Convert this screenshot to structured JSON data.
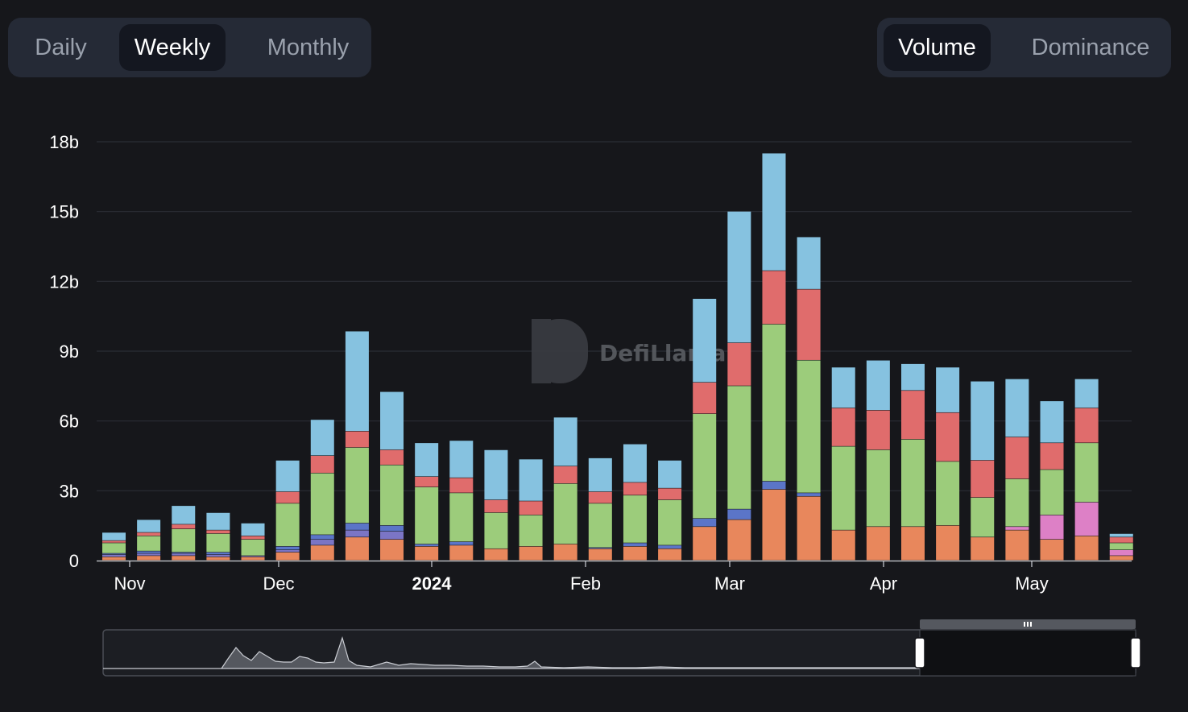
{
  "interval_toggle": {
    "options": [
      "Daily",
      "Weekly",
      "Monthly"
    ],
    "selected": "Weekly"
  },
  "metric_toggle": {
    "options": [
      "Volume",
      "Dominance"
    ],
    "selected": "Volume"
  },
  "watermark": {
    "text": "DefiLlama"
  },
  "colors": {
    "background": "#16171b",
    "toggle_bg": "#252a36",
    "toggle_active": "#141720",
    "gridline": "#2b2e35",
    "series": [
      "#e8875c",
      "#dd80c6",
      "#7b75c5",
      "#5b75c8",
      "#9ccc7b",
      "#e06c6c",
      "#86c2e0"
    ]
  },
  "chart_data": {
    "type": "bar",
    "stacked": true,
    "ylim": [
      0,
      18
    ],
    "yticks": [
      "0",
      "3b",
      "6b",
      "9b",
      "12b",
      "15b",
      "18b"
    ],
    "xticks": [
      "Nov",
      "Dec",
      "2024",
      "Feb",
      "Mar",
      "Apr",
      "May"
    ],
    "grid": true,
    "legend": "none",
    "series": [
      {
        "values": [
          0.15,
          0.2,
          0.2,
          0.15,
          0.15,
          0.35,
          0.65,
          1.0,
          0.9,
          0.6,
          0.65,
          0.5,
          0.6,
          0.7,
          0.5,
          0.6,
          0.5,
          1.45,
          1.75,
          3.05,
          2.75,
          1.3,
          1.45,
          1.45,
          1.5,
          1.0,
          1.3,
          0.9,
          1.05,
          0.2
        ]
      },
      {
        "values": [
          0,
          0,
          0,
          0,
          0,
          0,
          0,
          0,
          0,
          0,
          0,
          0,
          0,
          0,
          0,
          0,
          0,
          0,
          0,
          0,
          0,
          0,
          0,
          0,
          0,
          0,
          0.15,
          1.05,
          1.45,
          0.25
        ]
      },
      {
        "values": [
          0.1,
          0.1,
          0.1,
          0.1,
          0.05,
          0.1,
          0.25,
          0.3,
          0.35,
          0,
          0,
          0,
          0,
          0,
          0,
          0,
          0,
          0,
          0,
          0,
          0,
          0,
          0,
          0,
          0,
          0,
          0,
          0,
          0,
          0
        ]
      },
      {
        "values": [
          0.05,
          0.1,
          0.05,
          0.1,
          0,
          0.15,
          0.2,
          0.3,
          0.25,
          0.1,
          0.15,
          0,
          0,
          0,
          0.05,
          0.15,
          0.15,
          0.35,
          0.45,
          0.35,
          0.15,
          0,
          0,
          0,
          0,
          0,
          0,
          0,
          0,
          0
        ]
      },
      {
        "values": [
          0.45,
          0.65,
          1.0,
          0.8,
          0.7,
          1.85,
          2.65,
          3.25,
          2.6,
          2.45,
          2.1,
          1.55,
          1.35,
          2.6,
          1.9,
          2.05,
          1.95,
          4.5,
          5.3,
          6.75,
          5.7,
          3.6,
          3.3,
          3.75,
          2.75,
          1.7,
          2.05,
          1.95,
          2.55,
          0.3
        ]
      },
      {
        "values": [
          0.1,
          0.15,
          0.2,
          0.15,
          0.15,
          0.5,
          0.75,
          0.7,
          0.65,
          0.45,
          0.65,
          0.55,
          0.6,
          0.75,
          0.5,
          0.55,
          0.5,
          1.35,
          1.85,
          2.3,
          3.05,
          1.65,
          1.7,
          2.1,
          2.1,
          1.6,
          1.8,
          1.15,
          1.5,
          0.25
        ]
      },
      {
        "values": [
          0.35,
          0.55,
          0.8,
          0.75,
          0.55,
          1.35,
          1.55,
          4.3,
          2.5,
          1.45,
          1.6,
          2.15,
          1.8,
          2.1,
          1.45,
          1.65,
          1.2,
          3.6,
          5.65,
          5.05,
          2.25,
          1.75,
          2.15,
          1.15,
          1.95,
          3.4,
          2.5,
          1.8,
          1.25,
          0.15
        ]
      }
    ]
  }
}
